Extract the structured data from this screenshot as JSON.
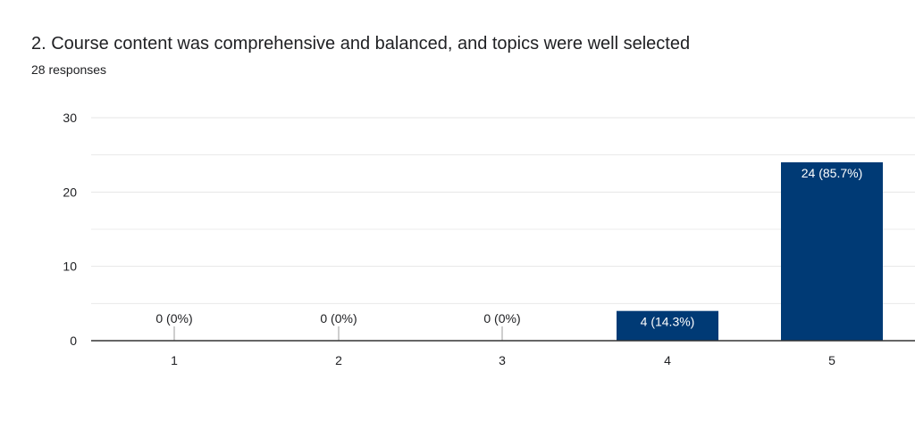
{
  "question": {
    "title": "2. Course content was comprehensive and balanced, and topics were well selected",
    "response_count": "28 responses"
  },
  "colors": {
    "bar": "#003a75",
    "grid": "#e6e6e6",
    "axis": "#333333",
    "label_inside": "#ffffff",
    "label_outside": "#202124"
  },
  "chart_data": {
    "type": "bar",
    "title": "",
    "xlabel": "",
    "ylabel": "",
    "categories": [
      "1",
      "2",
      "3",
      "4",
      "5"
    ],
    "values": [
      0,
      0,
      0,
      4,
      24
    ],
    "data_labels": [
      "0 (0%)",
      "0 (0%)",
      "0 (0%)",
      "4 (14.3%)",
      "24 (85.7%)"
    ],
    "ylim": [
      0,
      30
    ],
    "yticks": [
      0,
      10,
      20,
      30
    ],
    "grid": true,
    "legend": "none"
  }
}
